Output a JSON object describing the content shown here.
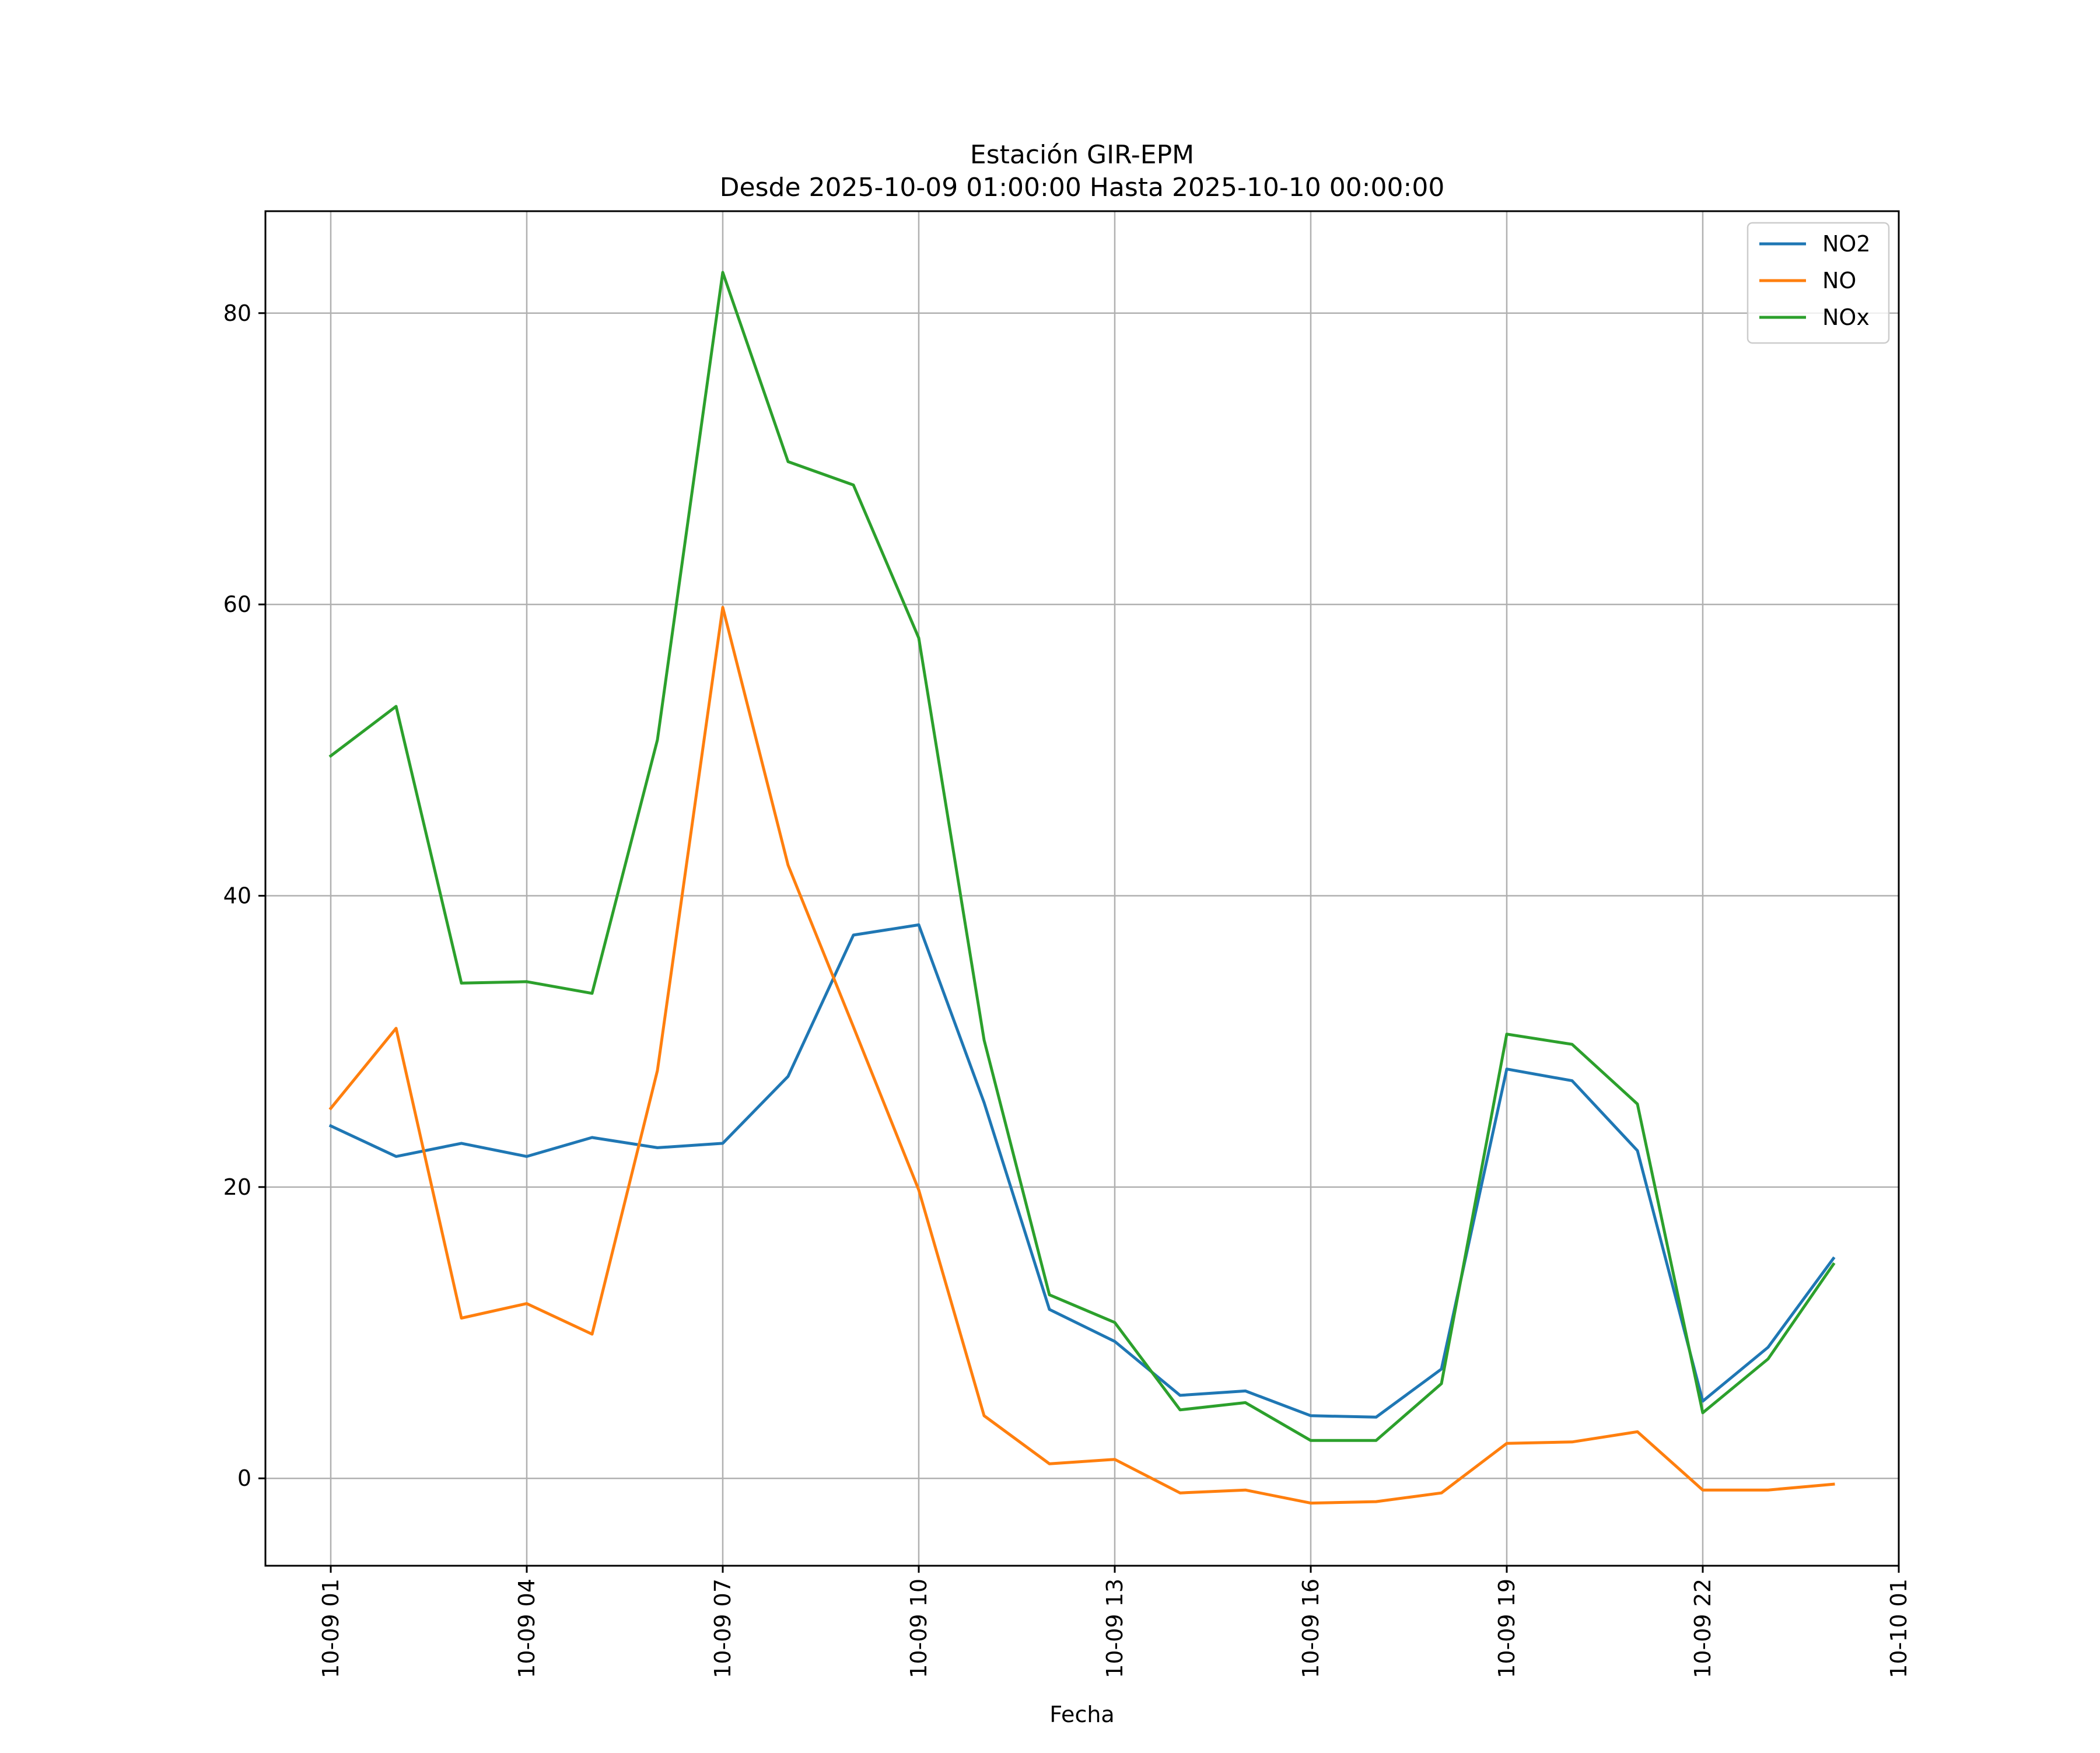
{
  "chart_data": {
    "type": "line",
    "title": "Estación GIR-EPM",
    "subtitle": "Desde 2025-10-09 01:00:00 Hasta 2025-10-10 00:00:00",
    "xlabel": "Fecha",
    "ylabel": "",
    "x": [
      "2025-10-09 01:00",
      "2025-10-09 02:00",
      "2025-10-09 03:00",
      "2025-10-09 04:00",
      "2025-10-09 05:00",
      "2025-10-09 06:00",
      "2025-10-09 07:00",
      "2025-10-09 08:00",
      "2025-10-09 09:00",
      "2025-10-09 10:00",
      "2025-10-09 11:00",
      "2025-10-09 12:00",
      "2025-10-09 13:00",
      "2025-10-09 14:00",
      "2025-10-09 15:00",
      "2025-10-09 16:00",
      "2025-10-09 17:00",
      "2025-10-09 18:00",
      "2025-10-09 19:00",
      "2025-10-09 20:00",
      "2025-10-09 21:00",
      "2025-10-09 22:00",
      "2025-10-09 23:00",
      "2025-10-10 00:00"
    ],
    "xlim": [
      "2025-10-09 00:00",
      "2025-10-10 01:00"
    ],
    "xticks": [
      {
        "value": "2025-10-09 01:00",
        "label": "10-09 01"
      },
      {
        "value": "2025-10-09 04:00",
        "label": "10-09 04"
      },
      {
        "value": "2025-10-09 07:00",
        "label": "10-09 07"
      },
      {
        "value": "2025-10-09 10:00",
        "label": "10-09 10"
      },
      {
        "value": "2025-10-09 13:00",
        "label": "10-09 13"
      },
      {
        "value": "2025-10-09 16:00",
        "label": "10-09 16"
      },
      {
        "value": "2025-10-09 19:00",
        "label": "10-09 19"
      },
      {
        "value": "2025-10-09 22:00",
        "label": "10-09 22"
      },
      {
        "value": "2025-10-10 01:00",
        "label": "10-10 01"
      }
    ],
    "ylim": [
      -6,
      87
    ],
    "yticks": [
      0,
      20,
      40,
      60,
      80
    ],
    "grid": true,
    "legend_position": "top-right",
    "series": [
      {
        "name": "NO2",
        "color": "#1f77b4",
        "values": [
          24.2,
          22.1,
          23.0,
          22.1,
          23.4,
          22.7,
          23.0,
          27.6,
          37.3,
          38.0,
          25.8,
          11.6,
          9.4,
          5.7,
          6.0,
          4.3,
          4.2,
          7.5,
          28.1,
          27.3,
          22.5,
          5.3,
          9.0,
          15.1
        ]
      },
      {
        "name": "NO",
        "color": "#ff7f0e",
        "values": [
          25.4,
          30.9,
          11.0,
          12.0,
          9.9,
          28.0,
          59.8,
          42.1,
          31.0,
          19.8,
          4.3,
          1.0,
          1.3,
          -1.0,
          -0.8,
          -1.7,
          -1.6,
          -1.0,
          2.4,
          2.5,
          3.2,
          -0.8,
          -0.8,
          -0.4
        ]
      },
      {
        "name": "NOx",
        "color": "#2ca02c",
        "values": [
          49.6,
          53.0,
          34.0,
          34.1,
          33.3,
          50.7,
          82.8,
          69.8,
          68.2,
          57.7,
          30.1,
          12.6,
          10.7,
          4.7,
          5.2,
          2.6,
          2.6,
          6.5,
          30.5,
          29.8,
          25.7,
          4.5,
          8.2,
          14.7
        ]
      }
    ]
  }
}
